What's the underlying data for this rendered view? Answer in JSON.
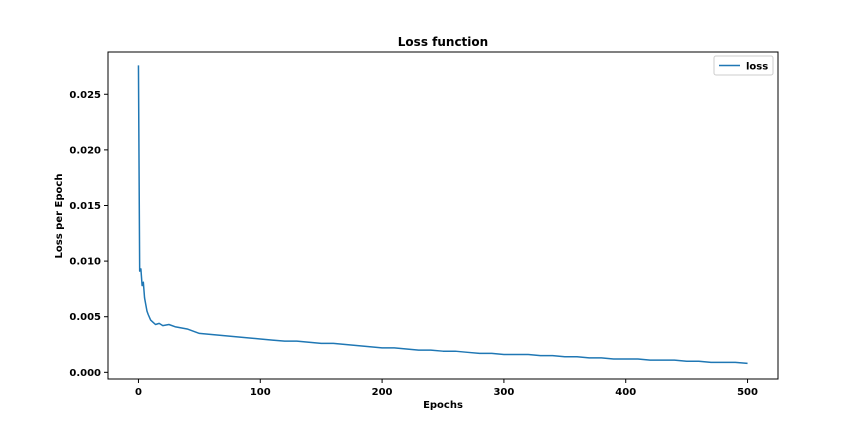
{
  "chart_data": {
    "type": "line",
    "title": "Loss function",
    "xlabel": "Epochs",
    "ylabel": "Loss per Epoch",
    "xlim": [
      -25,
      525
    ],
    "ylim": [
      -0.0006,
      0.0288
    ],
    "xticks": [
      0,
      100,
      200,
      300,
      400,
      500
    ],
    "xtick_labels": [
      "0",
      "100",
      "200",
      "300",
      "400",
      "500"
    ],
    "yticks": [
      0.0,
      0.005,
      0.01,
      0.015,
      0.02,
      0.025
    ],
    "ytick_labels": [
      "0.000",
      "0.005",
      "0.010",
      "0.015",
      "0.020",
      "0.025"
    ],
    "grid": false,
    "legend": "top-right",
    "series": [
      {
        "name": "loss",
        "color": "#1f77b4",
        "x": [
          0,
          1,
          2,
          3,
          4,
          5,
          6,
          7,
          8,
          10,
          12,
          14,
          17,
          20,
          25,
          30,
          35,
          40,
          45,
          50,
          60,
          70,
          80,
          90,
          100,
          110,
          120,
          130,
          140,
          150,
          160,
          170,
          180,
          190,
          200,
          210,
          220,
          230,
          240,
          250,
          260,
          270,
          280,
          290,
          300,
          310,
          320,
          330,
          340,
          350,
          360,
          370,
          380,
          390,
          400,
          410,
          420,
          430,
          440,
          450,
          460,
          470,
          480,
          490,
          500
        ],
        "y": [
          0.0276,
          0.0091,
          0.0093,
          0.0078,
          0.0081,
          0.0067,
          0.0061,
          0.0055,
          0.0052,
          0.0047,
          0.0045,
          0.0043,
          0.0044,
          0.0042,
          0.0043,
          0.0041,
          0.004,
          0.0039,
          0.0037,
          0.0035,
          0.0034,
          0.0033,
          0.0032,
          0.0031,
          0.003,
          0.0029,
          0.0028,
          0.0028,
          0.0027,
          0.0026,
          0.0026,
          0.0025,
          0.0024,
          0.0023,
          0.0022,
          0.0022,
          0.0021,
          0.002,
          0.002,
          0.0019,
          0.0019,
          0.0018,
          0.0017,
          0.0017,
          0.0016,
          0.0016,
          0.0016,
          0.0015,
          0.0015,
          0.0014,
          0.0014,
          0.0013,
          0.0013,
          0.0012,
          0.0012,
          0.0012,
          0.0011,
          0.0011,
          0.0011,
          0.001,
          0.001,
          0.0009,
          0.0009,
          0.0009,
          0.0008
        ]
      }
    ]
  }
}
